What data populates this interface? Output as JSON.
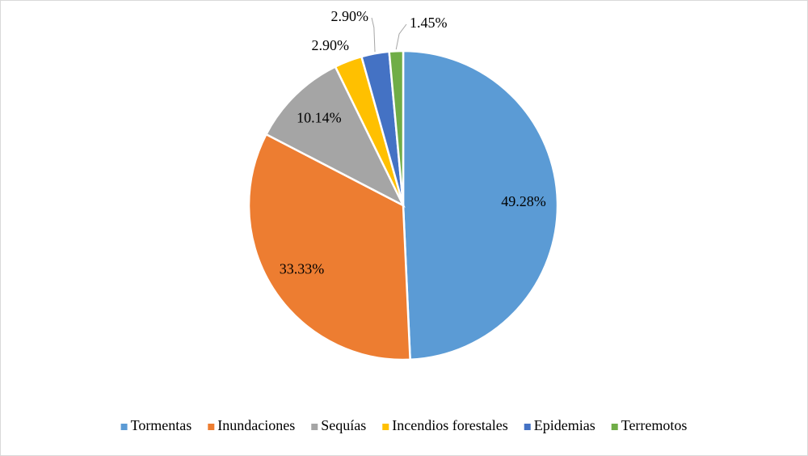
{
  "chart_data": {
    "type": "pie",
    "categories": [
      "Tormentas",
      "Inundaciones",
      "Sequías",
      "Incendios forestales",
      "Epidemias",
      "Terremotos"
    ],
    "values": [
      49.28,
      33.33,
      10.14,
      2.9,
      2.9,
      1.45
    ],
    "value_labels": [
      "49.28%",
      "33.33%",
      "10.14%",
      "2.90%",
      "2.90%",
      "1.45%"
    ],
    "colors": [
      "#5b9bd5",
      "#ed7d31",
      "#a5a5a5",
      "#ffc000",
      "#4472c4",
      "#70ad47"
    ],
    "legend": "bottom"
  }
}
